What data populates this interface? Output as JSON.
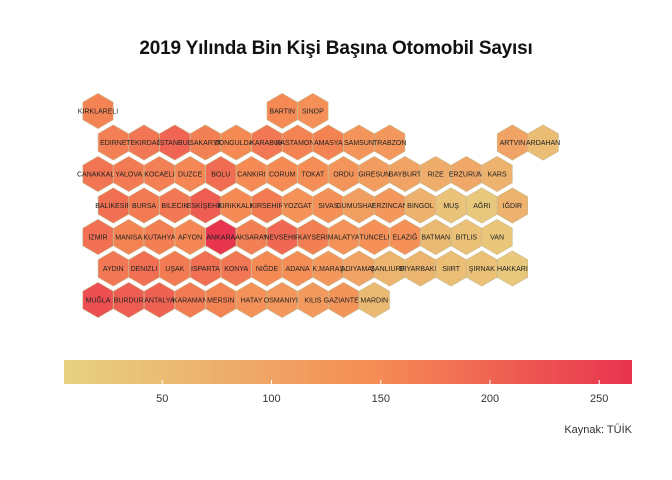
{
  "title": "2019 Yılında Bin Kişi Başına Otomobil Sayısı",
  "caption": "Kaynak: TÜİK",
  "colors": {
    "scale_low": "#e6d282",
    "scale_mid": "#f58c55",
    "scale_high": "#e8334f",
    "hex_stroke": "#c9b98c"
  },
  "chart_data": {
    "type": "heatmap",
    "value_range": [
      5,
      265
    ],
    "legend_ticks": [
      50,
      100,
      150,
      200,
      250
    ],
    "provinces": [
      {
        "name": "KIRKLARELI",
        "row": 0,
        "col": 0,
        "value": 160
      },
      {
        "name": "BARTIN",
        "row": 0,
        "col": 6,
        "value": 150
      },
      {
        "name": "SINOP",
        "row": 0,
        "col": 7,
        "value": 140
      },
      {
        "name": "EDIRNE",
        "row": 1,
        "col": 0,
        "value": 165
      },
      {
        "name": "TEKIRDAĞ",
        "row": 1,
        "col": 1,
        "value": 175
      },
      {
        "name": "ISTANBUL",
        "row": 1,
        "col": 2,
        "value": 200
      },
      {
        "name": "SAKARYA",
        "row": 1,
        "col": 3,
        "value": 165
      },
      {
        "name": "ZONGULDAK",
        "row": 1,
        "col": 4,
        "value": 150
      },
      {
        "name": "KARABUK",
        "row": 1,
        "col": 5,
        "value": 175
      },
      {
        "name": "KASTAMONU",
        "row": 1,
        "col": 6,
        "value": 160
      },
      {
        "name": "AMASYA",
        "row": 1,
        "col": 7,
        "value": 160
      },
      {
        "name": "SAMSUN",
        "row": 1,
        "col": 8,
        "value": 130
      },
      {
        "name": "TRABZON",
        "row": 1,
        "col": 9,
        "value": 125
      },
      {
        "name": "ARTVIN",
        "row": 1,
        "col": 13,
        "value": 100
      },
      {
        "name": "ARDAHAN",
        "row": 1,
        "col": 14,
        "value": 50
      },
      {
        "name": "CANAKKALE",
        "row": 2,
        "col": 0,
        "value": 180
      },
      {
        "name": "YALOVA",
        "row": 2,
        "col": 1,
        "value": 170
      },
      {
        "name": "KOCAELI",
        "row": 2,
        "col": 2,
        "value": 165
      },
      {
        "name": "DUZCE",
        "row": 2,
        "col": 3,
        "value": 155
      },
      {
        "name": "BOLU",
        "row": 2,
        "col": 4,
        "value": 190
      },
      {
        "name": "CANKIRI",
        "row": 2,
        "col": 5,
        "value": 150
      },
      {
        "name": "CORUM",
        "row": 2,
        "col": 6,
        "value": 150
      },
      {
        "name": "TOKAT",
        "row": 2,
        "col": 7,
        "value": 145
      },
      {
        "name": "ORDU",
        "row": 2,
        "col": 8,
        "value": 130
      },
      {
        "name": "GIRESUN",
        "row": 2,
        "col": 9,
        "value": 115
      },
      {
        "name": "BAYBURT",
        "row": 2,
        "col": 10,
        "value": 100
      },
      {
        "name": "RIZE",
        "row": 2,
        "col": 11,
        "value": 80
      },
      {
        "name": "ERZURUM",
        "row": 2,
        "col": 12,
        "value": 90
      },
      {
        "name": "KARS",
        "row": 2,
        "col": 13,
        "value": 70
      },
      {
        "name": "BALIKESIR",
        "row": 3,
        "col": 0,
        "value": 185
      },
      {
        "name": "BURSA",
        "row": 3,
        "col": 1,
        "value": 170
      },
      {
        "name": "BILECIK",
        "row": 3,
        "col": 2,
        "value": 175
      },
      {
        "name": "ESKİŞEHİR",
        "row": 3,
        "col": 3,
        "value": 210
      },
      {
        "name": "KIRIKKALE",
        "row": 3,
        "col": 4,
        "value": 150
      },
      {
        "name": "KIRSEHIR",
        "row": 3,
        "col": 5,
        "value": 170
      },
      {
        "name": "YOZGAT",
        "row": 3,
        "col": 6,
        "value": 135
      },
      {
        "name": "SIVAS",
        "row": 3,
        "col": 7,
        "value": 140
      },
      {
        "name": "GUMUSHANE",
        "row": 3,
        "col": 8,
        "value": 110
      },
      {
        "name": "ERZINCAN",
        "row": 3,
        "col": 9,
        "value": 125
      },
      {
        "name": "BINGOL",
        "row": 3,
        "col": 10,
        "value": 70
      },
      {
        "name": "MUŞ",
        "row": 3,
        "col": 11,
        "value": 35
      },
      {
        "name": "AĞRI",
        "row": 3,
        "col": 12,
        "value": 25
      },
      {
        "name": "IĞDIR",
        "row": 3,
        "col": 13,
        "value": 70
      },
      {
        "name": "IZMIR",
        "row": 4,
        "col": 0,
        "value": 185
      },
      {
        "name": "MANISA",
        "row": 4,
        "col": 1,
        "value": 160
      },
      {
        "name": "KUTAHYA",
        "row": 4,
        "col": 2,
        "value": 165
      },
      {
        "name": "AFYON",
        "row": 4,
        "col": 3,
        "value": 155
      },
      {
        "name": "ANKARA",
        "row": 4,
        "col": 4,
        "value": 262
      },
      {
        "name": "AKSARAY",
        "row": 4,
        "col": 5,
        "value": 165
      },
      {
        "name": "NEVSEHIR",
        "row": 4,
        "col": 6,
        "value": 195
      },
      {
        "name": "KAYSERI",
        "row": 4,
        "col": 7,
        "value": 165
      },
      {
        "name": "MALATYA",
        "row": 4,
        "col": 8,
        "value": 135
      },
      {
        "name": "TUNCELI",
        "row": 4,
        "col": 9,
        "value": 140
      },
      {
        "name": "ELAZIĞ",
        "row": 4,
        "col": 10,
        "value": 140
      },
      {
        "name": "BATMAN",
        "row": 4,
        "col": 11,
        "value": 55
      },
      {
        "name": "BITLIS",
        "row": 4,
        "col": 12,
        "value": 40
      },
      {
        "name": "VAN",
        "row": 4,
        "col": 13,
        "value": 30
      },
      {
        "name": "AYDIN",
        "row": 5,
        "col": 0,
        "value": 175
      },
      {
        "name": "DENIZLI",
        "row": 5,
        "col": 1,
        "value": 185
      },
      {
        "name": "UŞAK",
        "row": 5,
        "col": 2,
        "value": 170
      },
      {
        "name": "ISPARTA",
        "row": 5,
        "col": 3,
        "value": 185
      },
      {
        "name": "KONYA",
        "row": 5,
        "col": 4,
        "value": 175
      },
      {
        "name": "NIĞDE",
        "row": 5,
        "col": 5,
        "value": 150
      },
      {
        "name": "ADANA",
        "row": 5,
        "col": 6,
        "value": 145
      },
      {
        "name": "K.MARAŞ",
        "row": 5,
        "col": 7,
        "value": 125
      },
      {
        "name": "ADIYAMAN",
        "row": 5,
        "col": 8,
        "value": 100
      },
      {
        "name": "ŞANLIURFA",
        "row": 5,
        "col": 9,
        "value": 65
      },
      {
        "name": "DIYARBAKIR",
        "row": 5,
        "col": 10,
        "value": 65
      },
      {
        "name": "SIIRT",
        "row": 5,
        "col": 11,
        "value": 45
      },
      {
        "name": "ŞIRNAK",
        "row": 5,
        "col": 12,
        "value": 40
      },
      {
        "name": "HAKKARI",
        "row": 5,
        "col": 13,
        "value": 25
      },
      {
        "name": "MUĞLA",
        "row": 6,
        "col": 0,
        "value": 230
      },
      {
        "name": "BURDUR",
        "row": 6,
        "col": 1,
        "value": 210
      },
      {
        "name": "ANTALYA",
        "row": 6,
        "col": 2,
        "value": 205
      },
      {
        "name": "KARAMAN",
        "row": 6,
        "col": 3,
        "value": 170
      },
      {
        "name": "MERSIN",
        "row": 6,
        "col": 4,
        "value": 160
      },
      {
        "name": "HATAY",
        "row": 6,
        "col": 5,
        "value": 135
      },
      {
        "name": "OSMANIYE",
        "row": 6,
        "col": 6,
        "value": 125
      },
      {
        "name": "KILIS",
        "row": 6,
        "col": 7,
        "value": 120
      },
      {
        "name": "GAZIANTEP",
        "row": 6,
        "col": 8,
        "value": 130
      },
      {
        "name": "MARDIN",
        "row": 6,
        "col": 9,
        "value": 55
      }
    ]
  }
}
